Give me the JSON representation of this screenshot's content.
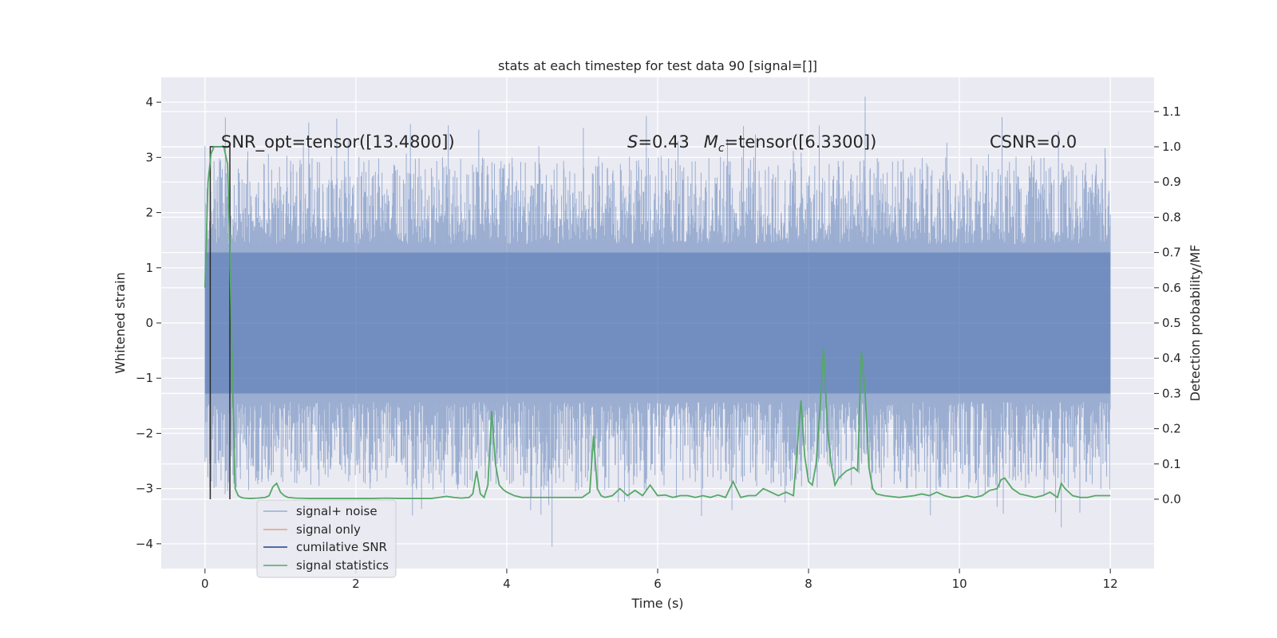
{
  "chart_data": {
    "type": "line",
    "title": "stats at each timestep for test data 90 [signal=[]]",
    "xlabel": "Time (s)",
    "ylabel": "Whitened strain",
    "y2label": "Detection probability/MF",
    "xlim": [
      -0.58,
      12.58
    ],
    "ylim": [
      -4.45,
      4.45
    ],
    "y2lim": [
      -0.197,
      1.197
    ],
    "xticks": [
      0,
      2,
      4,
      6,
      8,
      10,
      12
    ],
    "xtick_labels": [
      "0",
      "2",
      "4",
      "6",
      "8",
      "10",
      "12"
    ],
    "yticks": [
      -4,
      -3,
      -2,
      -1,
      0,
      1,
      2,
      3,
      4
    ],
    "ytick_labels": [
      "−4",
      "−3",
      "−2",
      "−1",
      "0",
      "1",
      "2",
      "3",
      "4"
    ],
    "y2ticks": [
      0.0,
      0.1,
      0.2,
      0.3,
      0.4,
      0.5,
      0.6,
      0.7,
      0.8,
      0.9,
      1.0,
      1.1
    ],
    "y2tick_labels": [
      "0.0",
      "0.1",
      "0.2",
      "0.3",
      "0.4",
      "0.5",
      "0.6",
      "0.7",
      "0.8",
      "0.9",
      "1.0",
      "1.1"
    ],
    "annotations": {
      "snr_opt": "SNR_opt=tensor([13.4800])",
      "s_prefix": "S",
      "s_value": "=0.43",
      "mc_prefix": "M",
      "mc_sub": "c",
      "mc_value": "=tensor([6.3300])",
      "csnr": "CSNR=0.0"
    },
    "legend": {
      "position": "lower-left",
      "entries": [
        {
          "label": "signal+ noise",
          "color": "#4c72b0"
        },
        {
          "label": "signal only",
          "color": "#dd8452"
        },
        {
          "label": "cumilative SNR",
          "color": "#1f3f8f"
        },
        {
          "label": "signal statistics",
          "color": "#55a868"
        }
      ]
    },
    "series": [
      {
        "name": "signal+ noise",
        "axis": "left",
        "style": "dense-noise",
        "x_range": [
          0,
          12
        ],
        "core_band": [
          -1.28,
          1.28
        ],
        "peak_max": 4.1,
        "peak_min": -4.05,
        "color": "#4c72b0"
      },
      {
        "name": "signal only",
        "axis": "left",
        "x": [],
        "y": [],
        "color": "#dd8452"
      },
      {
        "name": "cumilative SNR",
        "axis": "right",
        "x": [
          0.07,
          0.07,
          0.33,
          0.33
        ],
        "y": [
          0.0,
          1.0,
          1.0,
          0.0
        ],
        "color": "#1f3f8f"
      },
      {
        "name": "signal statistics",
        "axis": "right",
        "color": "#55a868",
        "x": [
          0.0,
          0.04,
          0.08,
          0.12,
          0.16,
          0.2,
          0.25,
          0.3,
          0.33,
          0.36,
          0.4,
          0.44,
          0.48,
          0.52,
          0.6,
          0.7,
          0.8,
          0.85,
          0.9,
          0.95,
          1.0,
          1.05,
          1.1,
          1.2,
          1.4,
          1.6,
          1.8,
          2.0,
          2.2,
          2.4,
          2.6,
          2.8,
          3.0,
          3.1,
          3.2,
          3.3,
          3.4,
          3.5,
          3.55,
          3.6,
          3.65,
          3.7,
          3.75,
          3.8,
          3.85,
          3.9,
          3.95,
          4.0,
          4.1,
          4.2,
          4.4,
          4.6,
          4.8,
          5.0,
          5.1,
          5.15,
          5.2,
          5.25,
          5.3,
          5.4,
          5.5,
          5.6,
          5.7,
          5.8,
          5.9,
          6.0,
          6.1,
          6.2,
          6.3,
          6.4,
          6.5,
          6.6,
          6.7,
          6.8,
          6.9,
          7.0,
          7.1,
          7.2,
          7.3,
          7.4,
          7.5,
          7.6,
          7.7,
          7.8,
          7.9,
          7.95,
          8.0,
          8.05,
          8.1,
          8.15,
          8.2,
          8.25,
          8.3,
          8.35,
          8.4,
          8.5,
          8.6,
          8.65,
          8.7,
          8.75,
          8.8,
          8.85,
          8.9,
          9.0,
          9.2,
          9.4,
          9.5,
          9.6,
          9.7,
          9.8,
          9.9,
          10.0,
          10.1,
          10.2,
          10.3,
          10.4,
          10.5,
          10.55,
          10.6,
          10.7,
          10.8,
          10.9,
          11.0,
          11.1,
          11.2,
          11.3,
          11.35,
          11.4,
          11.5,
          11.6,
          11.7,
          11.8,
          11.9,
          12.0
        ],
        "y": [
          0.6,
          0.9,
          0.98,
          1.0,
          1.0,
          1.0,
          1.0,
          0.95,
          0.7,
          0.38,
          0.03,
          0.01,
          0.005,
          0.003,
          0.002,
          0.003,
          0.005,
          0.01,
          0.035,
          0.045,
          0.02,
          0.01,
          0.005,
          0.003,
          0.002,
          0.002,
          0.002,
          0.002,
          0.002,
          0.003,
          0.002,
          0.002,
          0.002,
          0.005,
          0.008,
          0.005,
          0.003,
          0.005,
          0.015,
          0.08,
          0.015,
          0.005,
          0.04,
          0.25,
          0.1,
          0.04,
          0.028,
          0.02,
          0.01,
          0.005,
          0.005,
          0.005,
          0.005,
          0.005,
          0.02,
          0.18,
          0.03,
          0.01,
          0.005,
          0.01,
          0.03,
          0.01,
          0.025,
          0.01,
          0.04,
          0.01,
          0.012,
          0.005,
          0.01,
          0.01,
          0.005,
          0.01,
          0.005,
          0.012,
          0.005,
          0.05,
          0.005,
          0.01,
          0.01,
          0.03,
          0.02,
          0.01,
          0.02,
          0.01,
          0.28,
          0.12,
          0.05,
          0.04,
          0.1,
          0.25,
          0.43,
          0.2,
          0.1,
          0.04,
          0.06,
          0.08,
          0.09,
          0.08,
          0.42,
          0.3,
          0.09,
          0.03,
          0.015,
          0.01,
          0.005,
          0.01,
          0.015,
          0.01,
          0.02,
          0.01,
          0.005,
          0.005,
          0.01,
          0.005,
          0.01,
          0.025,
          0.03,
          0.055,
          0.06,
          0.03,
          0.015,
          0.01,
          0.005,
          0.01,
          0.02,
          0.005,
          0.045,
          0.03,
          0.01,
          0.005,
          0.005,
          0.01,
          0.01,
          0.01
        ]
      }
    ]
  }
}
